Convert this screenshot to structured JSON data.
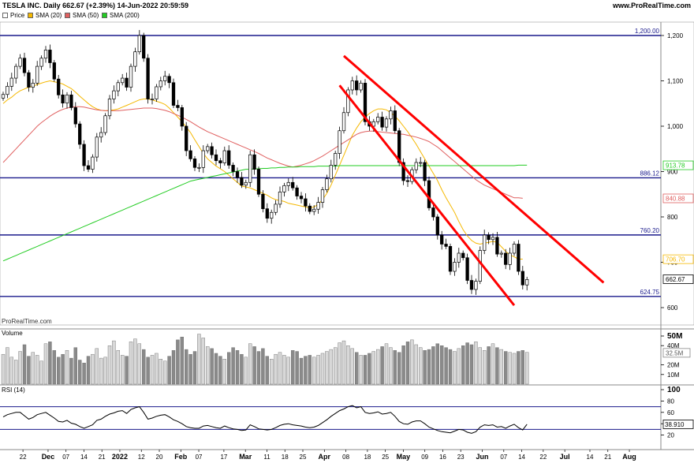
{
  "header": {
    "title": "TESLA INC. Daily 662.67 (+2.39%) 14-Jun-2022 20:59:59",
    "site": "www.ProRealTime.com"
  },
  "legend": [
    {
      "label": "Price",
      "color": "#000000"
    },
    {
      "label": "SMA (20)",
      "color": "#f5b800"
    },
    {
      "label": "SMA (50)",
      "color": "#e06060"
    },
    {
      "label": "SMA (200)",
      "color": "#22cc22"
    }
  ],
  "watermark": "ProRealTime.com",
  "chart_data": [
    {
      "type": "candlestick",
      "title": "TESLA INC. Daily",
      "ylim": [
        570,
        1220
      ],
      "y_ticks": [
        "1,200",
        "1,100",
        "1,000",
        "900",
        "800",
        "700",
        "600"
      ],
      "x_ticks": [
        "22",
        "Dec",
        "07",
        "14",
        "21",
        "2022",
        "12",
        "20",
        "Feb",
        "07",
        "17",
        "Mar",
        "11",
        "18",
        "25",
        "Apr",
        "08",
        "18",
        "25",
        "May",
        "09",
        "16",
        "23",
        "Jun",
        "07",
        "14",
        "22",
        "Jul",
        "14",
        "21",
        "Aug"
      ],
      "horizontal_levels": [
        {
          "value": 1200.0,
          "label": "1,200.00"
        },
        {
          "value": 886.12,
          "label": "886.12"
        },
        {
          "value": 760.2,
          "label": "760.20"
        },
        {
          "value": 624.75,
          "label": "624.75"
        }
      ],
      "price_markers": [
        {
          "label": "913.78",
          "series": "SMA (200)",
          "color": "#22cc22"
        },
        {
          "label": "840.88",
          "series": "SMA (50)",
          "color": "#e06060"
        },
        {
          "label": "706.70",
          "series": "SMA (20)",
          "color": "#f5b800"
        },
        {
          "label": "662.67",
          "series": "Price",
          "color": "#000000"
        }
      ],
      "trendlines": [
        {
          "from": [
            "Apr 04",
            1155
          ],
          "to": [
            "Jul 01",
            655
          ],
          "color": "#ff0000"
        },
        {
          "from": [
            "Apr 01",
            1090
          ],
          "to": [
            "Jun 01",
            605
          ],
          "color": "#ff0000"
        }
      ],
      "series": [
        {
          "name": "Price",
          "values": [
            1070,
            1088,
            1106,
            1132,
            1150,
            1118,
            1086,
            1095,
            1132,
            1150,
            1168,
            1140,
            1104,
            1069,
            1051,
            1069,
            1041,
            1005,
            960,
            913,
            905,
            932,
            976,
            986,
            1023,
            1060,
            1078,
            1096,
            1106,
            1086,
            1132,
            1164,
            1200,
            1150,
            1060,
            1060,
            1087,
            1100,
            1110,
            1096,
            1046,
            1041,
            1000,
            946,
            928,
            909,
            909,
            946,
            955,
            937,
            924,
            919,
            946,
            914,
            900,
            887,
            870,
            876,
            937,
            905,
            850,
            818,
            797,
            810,
            828,
            855,
            869,
            876,
            864,
            846,
            840,
            824,
            812,
            817,
            832,
            860,
            884,
            914,
            940,
            990,
            1030,
            1080,
            1100,
            1080,
            1095,
            1010,
            1000,
            1010,
            1020,
            998,
            1016,
            1034,
            990,
            920,
            880,
            878,
            904,
            920,
            920,
            880,
            820,
            800,
            760,
            740,
            735,
            680,
            700,
            720,
            710,
            660,
            640,
            658,
            726,
            760,
            750,
            755,
            718,
            720,
            695,
            720,
            740,
            680,
            650,
            662
          ]
        },
        {
          "name": "SMA (20)",
          "values": [
            1050,
            1058,
            1064,
            1072,
            1078,
            1082,
            1086,
            1088,
            1092,
            1095,
            1098,
            1100,
            1098,
            1096,
            1093,
            1088,
            1083,
            1075,
            1066,
            1058,
            1050,
            1043,
            1038,
            1035,
            1034,
            1035,
            1036,
            1038,
            1042,
            1046,
            1050,
            1054,
            1058,
            1060,
            1060,
            1058,
            1055,
            1052,
            1048,
            1040,
            1030,
            1020,
            1010,
            998,
            986,
            970,
            955,
            940,
            928,
            920,
            912,
            906,
            900,
            892,
            884,
            876,
            868,
            866,
            864,
            860,
            856,
            852,
            848,
            842,
            838,
            836,
            834,
            830,
            828,
            826,
            824,
            822,
            820,
            822,
            828,
            838,
            852,
            870,
            892,
            914,
            936,
            958,
            980,
            996,
            1010,
            1020,
            1028,
            1034,
            1038,
            1038,
            1036,
            1030,
            1022,
            1012,
            1000,
            988,
            974,
            960,
            944,
            928,
            912,
            896,
            880,
            860,
            842,
            826,
            810,
            790,
            772,
            758,
            748,
            742,
            740,
            742,
            744,
            746,
            744,
            734,
            724,
            716,
            712,
            707,
            707
          ]
        },
        {
          "name": "SMA (50)",
          "values": [
            920,
            930,
            940,
            950,
            960,
            970,
            980,
            990,
            1000,
            1008,
            1015,
            1022,
            1028,
            1033,
            1037,
            1040,
            1042,
            1043,
            1043,
            1042,
            1040,
            1038,
            1036,
            1035,
            1034,
            1034,
            1034,
            1034,
            1035,
            1036,
            1037,
            1038,
            1039,
            1040,
            1040,
            1040,
            1039,
            1037,
            1035,
            1032,
            1028,
            1024,
            1020,
            1015,
            1010,
            1004,
            998,
            993,
            988,
            984,
            980,
            976,
            972,
            968,
            964,
            960,
            956,
            952,
            948,
            944,
            940,
            935,
            930,
            926,
            922,
            918,
            915,
            912,
            910,
            912,
            914,
            917,
            920,
            924,
            929,
            934,
            940,
            946,
            952,
            958,
            964,
            970,
            976,
            982,
            986,
            988,
            989,
            989,
            988,
            987,
            986,
            985,
            984,
            983,
            982,
            980,
            978,
            976,
            973,
            970,
            966,
            960,
            954,
            946,
            938,
            930,
            922,
            914,
            906,
            898,
            890,
            882,
            876,
            870,
            866,
            862,
            858,
            854,
            850,
            846,
            842,
            842,
            841
          ]
        },
        {
          "name": "SMA (200)",
          "values": [
            703,
            707,
            711,
            715,
            719,
            723,
            727,
            731,
            735,
            739,
            743,
            747,
            751,
            755,
            759,
            763,
            767,
            771,
            775,
            779,
            783,
            787,
            791,
            795,
            799,
            803,
            807,
            811,
            815,
            819,
            823,
            827,
            831,
            835,
            839,
            843,
            847,
            851,
            855,
            859,
            863,
            867,
            871,
            875,
            879,
            881,
            883,
            885,
            887,
            889,
            891,
            893,
            895,
            897,
            899,
            901,
            903,
            905,
            905,
            906,
            906,
            907,
            907,
            908,
            908,
            909,
            909,
            910,
            910,
            910,
            911,
            911,
            911,
            911,
            912,
            912,
            912,
            912,
            912,
            913,
            913,
            913,
            913,
            913,
            913,
            913,
            913,
            913,
            913,
            913,
            913,
            913,
            913,
            913,
            913,
            913,
            913,
            913,
            913,
            913,
            913,
            913,
            913,
            913,
            913,
            913,
            913,
            913,
            913,
            913,
            913,
            913,
            913,
            913,
            913,
            913,
            913,
            913,
            913,
            913,
            913,
            914,
            914,
            914
          ]
        }
      ]
    },
    {
      "type": "bar",
      "title": "Volume",
      "y_ticks": [
        "50M",
        "40M",
        "20M",
        "10M"
      ],
      "price_markers": [
        {
          "label": "32.5M"
        }
      ],
      "values": [
        31,
        38,
        28,
        25,
        34,
        41,
        29,
        33,
        30,
        24,
        42,
        44,
        35,
        28,
        31,
        35,
        27,
        38,
        25,
        22,
        29,
        31,
        37,
        27,
        28,
        40,
        45,
        35,
        30,
        29,
        44,
        47,
        42,
        36,
        28,
        30,
        32,
        26,
        24,
        29,
        35,
        46,
        49,
        36,
        31,
        34,
        52,
        48,
        39,
        37,
        32,
        29,
        26,
        33,
        38,
        35,
        31,
        28,
        42,
        39,
        34,
        37,
        29,
        26,
        31,
        33,
        30,
        28,
        35,
        34,
        27,
        29,
        30,
        28,
        30,
        32,
        34,
        36,
        38,
        43,
        45,
        40,
        37,
        33,
        30,
        30,
        32,
        34,
        36,
        39,
        42,
        38,
        35,
        33,
        40,
        44,
        46,
        41,
        38,
        35,
        36,
        39,
        42,
        40,
        38,
        36,
        34,
        37,
        40,
        43,
        41,
        44,
        38,
        35,
        39,
        42,
        38,
        36,
        34,
        33,
        32,
        34,
        35,
        33
      ]
    },
    {
      "type": "line",
      "title": "RSI (14)",
      "ylim": [
        0,
        100
      ],
      "y_ticks": [
        "100",
        "80",
        "60",
        "40",
        "20"
      ],
      "levels": [
        70,
        30
      ],
      "price_markers": [
        {
          "label": "38.910"
        }
      ],
      "values": [
        52,
        56,
        58,
        60,
        60,
        54,
        48,
        51,
        56,
        58,
        60,
        55,
        50,
        44,
        43,
        46,
        41,
        39,
        35,
        32,
        35,
        38,
        46,
        48,
        53,
        57,
        59,
        62,
        63,
        58,
        65,
        68,
        70,
        60,
        48,
        50,
        53,
        55,
        56,
        52,
        47,
        44,
        40,
        35,
        33,
        32,
        32,
        36,
        37,
        35,
        33,
        32,
        36,
        33,
        31,
        30,
        28,
        29,
        38,
        35,
        31,
        30,
        29,
        30,
        33,
        37,
        39,
        40,
        38,
        37,
        36,
        34,
        33,
        34,
        37,
        42,
        47,
        53,
        58,
        63,
        66,
        70,
        72,
        68,
        70,
        60,
        58,
        59,
        61,
        57,
        58,
        60,
        53,
        44,
        40,
        39,
        43,
        45,
        45,
        40,
        34,
        31,
        28,
        26,
        25,
        24,
        27,
        30,
        29,
        25,
        23,
        26,
        34,
        38,
        37,
        38,
        34,
        35,
        32,
        36,
        39,
        33,
        29,
        39
      ]
    }
  ]
}
